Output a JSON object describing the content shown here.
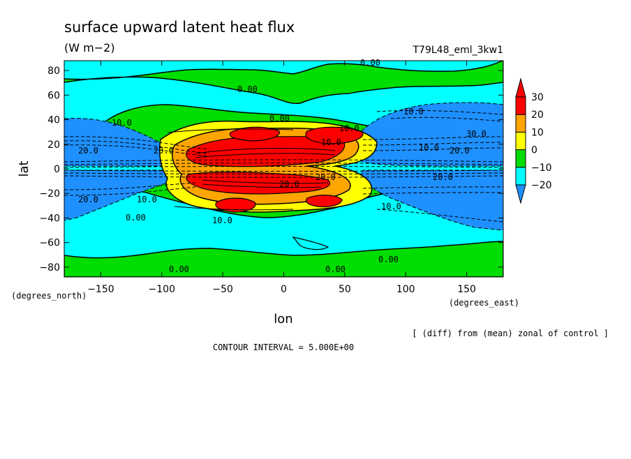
{
  "chart_data": {
    "type": "heatmap",
    "title": "surface upward latent heat flux",
    "units": "(W m−2)",
    "experiment": "T79L48_eml_3kw1",
    "xlabel": "lon",
    "ylabel": "lat",
    "x_unit_note": "(degrees_east)",
    "y_unit_note": "(degrees_north)",
    "xlim": [
      -180,
      180
    ],
    "ylim": [
      -88,
      88
    ],
    "x_ticks": [
      -150,
      -100,
      -50,
      0,
      50,
      100,
      150
    ],
    "x_tick_labels": [
      "−150",
      "−100",
      "−50",
      "0",
      "50",
      "100",
      "150"
    ],
    "y_ticks": [
      80,
      60,
      40,
      20,
      0,
      -20,
      -40,
      -60,
      -80
    ],
    "y_tick_labels": [
      "80",
      "60",
      "40",
      "20",
      "0",
      "−20",
      "−40",
      "−60",
      "−80"
    ],
    "diff_note": "[ (diff) from (mean) zonal of control ]",
    "contour_interval": "CONTOUR INTERVAL = 5.000E+00",
    "colorbar": {
      "levels": [
        -20,
        -10,
        0,
        10,
        20,
        30
      ],
      "labels": [
        "−20",
        "−10",
        "0",
        "10",
        "20",
        "30"
      ],
      "colors": [
        "#1e90ff",
        "#00ffff",
        "#00dd00",
        "#ffff00",
        "#ffa500",
        "#ff0000"
      ]
    },
    "contour_labels": [
      "0.00",
      "0.00",
      "0.00",
      "0.00",
      "0.00",
      "0.00",
      "0.00",
      "10.0",
      "10.0",
      "20.0",
      "10.0",
      "30.0",
      "20.0",
      "20.0",
      "10.0",
      "10.0",
      "20.0",
      "10.0",
      "20.0",
      "10.0",
      "20.0",
      "20.0",
      "10.0"
    ]
  }
}
